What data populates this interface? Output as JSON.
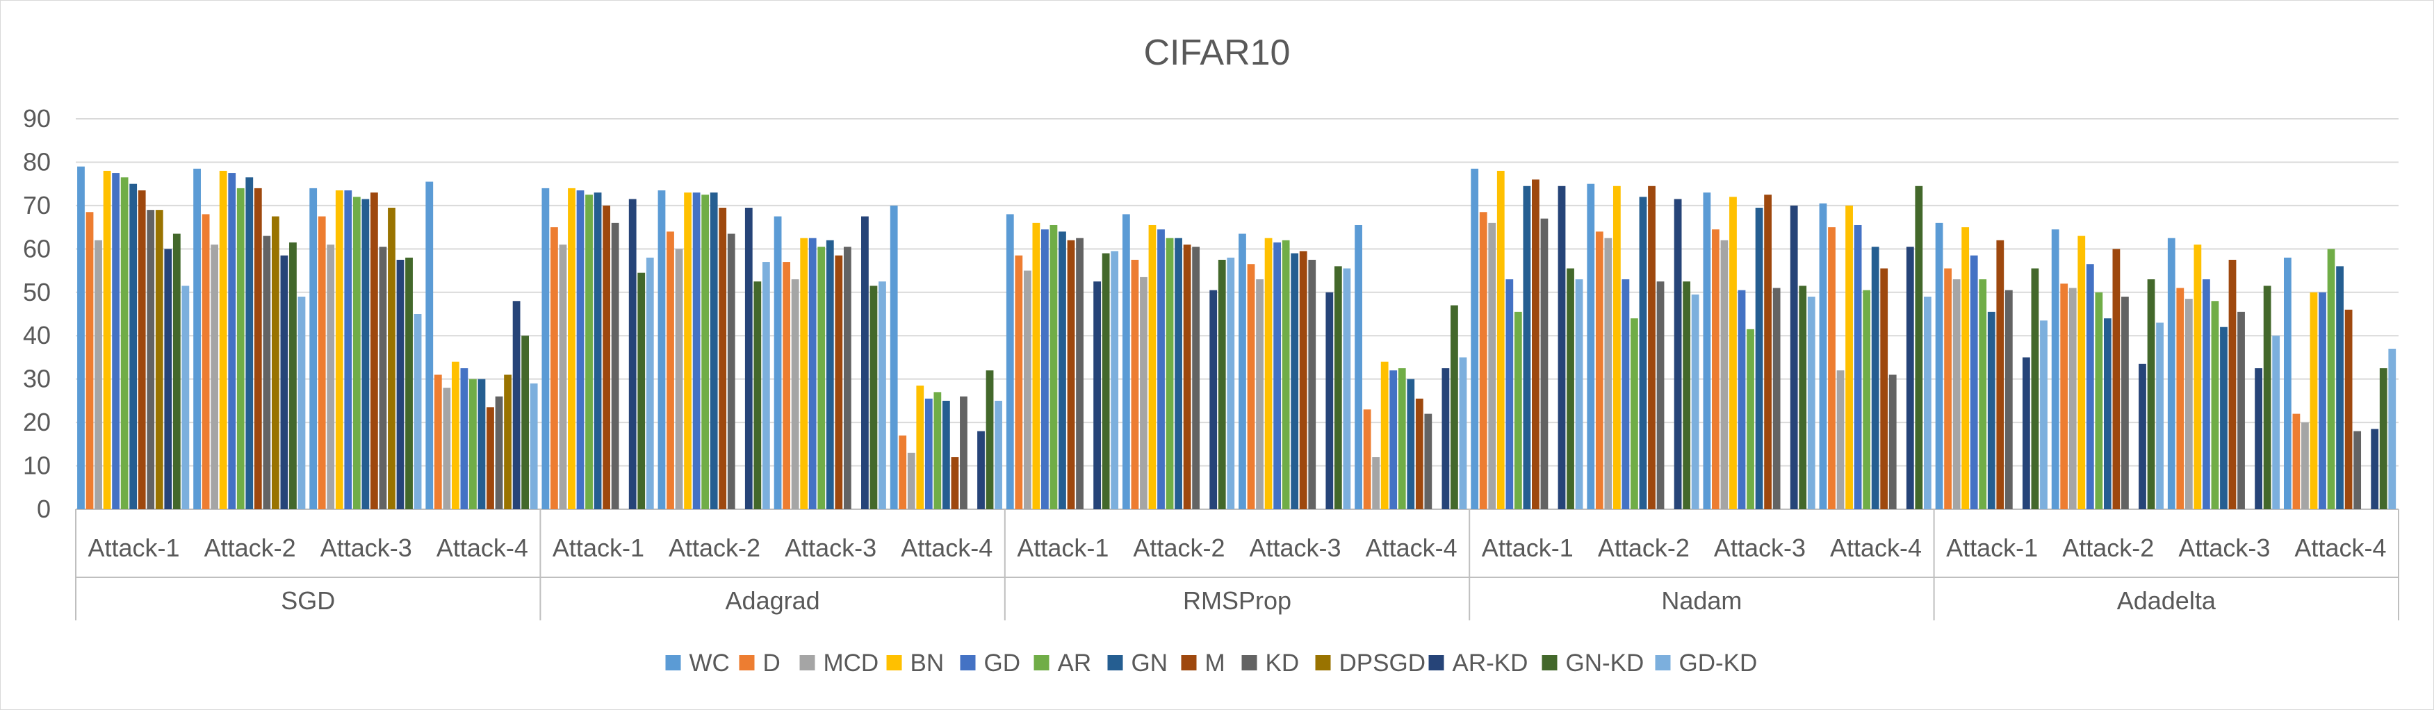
{
  "chart_data": {
    "type": "bar",
    "title": "CIFAR10",
    "xlabel": "",
    "ylabel": "",
    "ylim": [
      0,
      90
    ],
    "yticks": [
      0,
      10,
      20,
      30,
      40,
      50,
      60,
      70,
      80,
      90
    ],
    "grid": true,
    "legend_position": "bottom",
    "groups": [
      "SGD",
      "Adagrad",
      "RMSProp",
      "Nadam",
      "Adadelta"
    ],
    "categories": [
      "Attack-1",
      "Attack-2",
      "Attack-3",
      "Attack-4"
    ],
    "series": [
      {
        "name": "WC",
        "color": "#5B9BD5",
        "values": [
          [
            79,
            78.5,
            74,
            75.5
          ],
          [
            74,
            73.5,
            67.5,
            70
          ],
          [
            68,
            68,
            63.5,
            65.5
          ],
          [
            78.5,
            75,
            73,
            70.5
          ],
          [
            66,
            64.5,
            62.5,
            58
          ]
        ]
      },
      {
        "name": "D",
        "color": "#ED7D31",
        "values": [
          [
            68.5,
            68,
            67.5,
            31
          ],
          [
            65,
            64,
            57,
            17
          ],
          [
            58.5,
            57.5,
            56.5,
            23
          ],
          [
            68.5,
            64,
            64.5,
            65
          ],
          [
            55.5,
            52,
            51,
            22
          ]
        ]
      },
      {
        "name": "MCD",
        "color": "#A5A5A5",
        "values": [
          [
            62,
            61,
            61,
            28
          ],
          [
            61,
            60,
            53,
            13
          ],
          [
            55,
            53.5,
            53,
            12
          ],
          [
            66,
            62.5,
            62,
            32
          ],
          [
            53,
            51,
            48.5,
            20
          ]
        ]
      },
      {
        "name": "BN",
        "color": "#FFC000",
        "values": [
          [
            78,
            78,
            73.5,
            34
          ],
          [
            74,
            73,
            62.5,
            28.5
          ],
          [
            66,
            65.5,
            62.5,
            34
          ],
          [
            78,
            74.5,
            72,
            70
          ],
          [
            65,
            63,
            61,
            50
          ]
        ]
      },
      {
        "name": "GD",
        "color": "#4472C4",
        "values": [
          [
            77.5,
            77.5,
            73.5,
            32.5
          ],
          [
            73.5,
            73,
            62.5,
            25.5
          ],
          [
            64.5,
            64.5,
            61.5,
            32
          ],
          [
            53,
            53,
            50.5,
            65.5
          ],
          [
            58.5,
            56.5,
            53,
            50
          ]
        ]
      },
      {
        "name": "AR",
        "color": "#70AD47",
        "values": [
          [
            76.5,
            74,
            72,
            30
          ],
          [
            72.5,
            72.5,
            60.5,
            27
          ],
          [
            65.5,
            62.5,
            62,
            32.5
          ],
          [
            45.5,
            44,
            41.5,
            50.5
          ],
          [
            53,
            50,
            48,
            60
          ]
        ]
      },
      {
        "name": "GN",
        "color": "#255E91",
        "values": [
          [
            75,
            76.5,
            71.5,
            30
          ],
          [
            73,
            73,
            62,
            25
          ],
          [
            64,
            62.5,
            59,
            30
          ],
          [
            74.5,
            72,
            69.5,
            60.5
          ],
          [
            45.5,
            44,
            42,
            56
          ]
        ]
      },
      {
        "name": "M",
        "color": "#9E480E",
        "values": [
          [
            73.5,
            74,
            73,
            23.5
          ],
          [
            70,
            69.5,
            58.5,
            12
          ],
          [
            62,
            61,
            59.5,
            25.5
          ],
          [
            76,
            74.5,
            72.5,
            55.5
          ],
          [
            62,
            60,
            57.5,
            46
          ]
        ]
      },
      {
        "name": "KD",
        "color": "#636363",
        "values": [
          [
            69,
            63,
            60.5,
            26
          ],
          [
            66,
            63.5,
            60.5,
            26
          ],
          [
            62.5,
            60.5,
            57.5,
            22
          ],
          [
            67,
            52.5,
            51,
            31
          ],
          [
            50.5,
            49,
            45.5,
            18
          ]
        ]
      },
      {
        "name": "DPSGD",
        "color": "#997300",
        "values": [
          [
            69,
            67.5,
            69.5,
            31
          ],
          [
            null,
            null,
            null,
            null
          ],
          [
            null,
            null,
            null,
            null
          ],
          [
            null,
            null,
            null,
            null
          ],
          [
            null,
            null,
            null,
            null
          ]
        ]
      },
      {
        "name": "AR-KD",
        "color": "#264478",
        "values": [
          [
            60,
            58.5,
            57.5,
            48
          ],
          [
            71.5,
            69.5,
            67.5,
            18
          ],
          [
            52.5,
            50.5,
            50,
            32.5
          ],
          [
            74.5,
            71.5,
            70,
            60.5
          ],
          [
            35,
            33.5,
            32.5,
            18.5
          ]
        ]
      },
      {
        "name": "GN-KD",
        "color": "#43682B",
        "values": [
          [
            63.5,
            61.5,
            58,
            40
          ],
          [
            54.5,
            52.5,
            51.5,
            32
          ],
          [
            59,
            57.5,
            56,
            47
          ],
          [
            55.5,
            52.5,
            51.5,
            74.5
          ],
          [
            55.5,
            53,
            51.5,
            32.5
          ]
        ]
      },
      {
        "name": "GD-KD",
        "color": "#7CAFDD",
        "values": [
          [
            51.5,
            49,
            45,
            29
          ],
          [
            58,
            57,
            52.5,
            25
          ],
          [
            59.5,
            58,
            55.5,
            35
          ],
          [
            53,
            49.5,
            49,
            49
          ],
          [
            43.5,
            43,
            40,
            37
          ]
        ]
      }
    ]
  }
}
